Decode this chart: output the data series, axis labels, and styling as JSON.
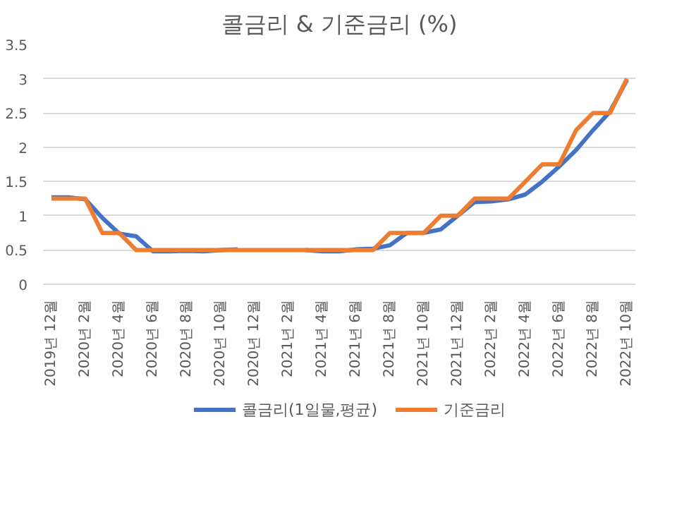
{
  "chart_data": {
    "type": "line",
    "title": "콜금리 & 기준금리 (%)",
    "categories": [
      "2019년 12월",
      null,
      "2020년 2월",
      null,
      "2020년 4월",
      null,
      "2020년 6월",
      null,
      "2020년 8월",
      null,
      "2020년 10월",
      null,
      "2020년 12월",
      null,
      "2021년 2월",
      null,
      "2021년 4월",
      null,
      "2021년 6월",
      null,
      "2021년 8월",
      null,
      "2021년 10월",
      null,
      "2021년 12월",
      null,
      "2022년 2월",
      null,
      "2022년 4월",
      null,
      "2022년 6월",
      null,
      "2022년 8월",
      null,
      "2022년 10월"
    ],
    "series": [
      {
        "name": "콜금리(1일물,평균)",
        "color": "#4472c4",
        "values": [
          1.27,
          1.27,
          1.24,
          0.97,
          0.74,
          0.7,
          0.48,
          0.48,
          0.49,
          0.48,
          0.5,
          0.51,
          null,
          null,
          null,
          0.5,
          0.48,
          0.48,
          0.51,
          0.52,
          0.57,
          0.75,
          0.75,
          0.8,
          1.0,
          1.2,
          1.21,
          1.24,
          1.31,
          1.5,
          1.72,
          1.96,
          2.25,
          2.52,
          2.98
        ]
      },
      {
        "name": "기준금리",
        "color": "#ed7d31",
        "values": [
          1.25,
          1.25,
          1.25,
          0.75,
          0.75,
          0.5,
          0.5,
          0.5,
          0.5,
          0.5,
          0.5,
          0.5,
          0.5,
          0.5,
          0.5,
          0.5,
          0.5,
          0.5,
          0.5,
          0.5,
          0.75,
          0.75,
          0.75,
          1.0,
          1.0,
          1.25,
          1.25,
          1.25,
          1.5,
          1.75,
          1.75,
          2.25,
          2.5,
          2.5,
          3.0
        ]
      }
    ],
    "ylim": [
      0,
      3.5
    ],
    "yticks": [
      0,
      0.5,
      1,
      1.5,
      2,
      2.5,
      3,
      3.5
    ],
    "grid": "y",
    "legend": "bottom",
    "marker": "none",
    "line_style": "solid"
  }
}
